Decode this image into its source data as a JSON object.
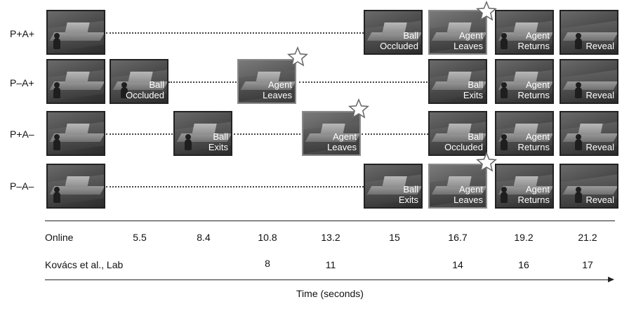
{
  "rows": [
    {
      "label": "P+A+",
      "captions": {
        "5": "Ball\nOccluded",
        "6": "Agent\nLeaves",
        "7": "Agent\nReturns",
        "8": "Reveal"
      }
    },
    {
      "label": "P–A+",
      "captions": {
        "2": "Ball\nOccluded",
        "4": "Agent\nLeaves",
        "6": "Ball\nExits",
        "7": "Agent\nReturns",
        "8": "Reveal"
      }
    },
    {
      "label": "P+A–",
      "captions": {
        "3": "Ball\nExits",
        "5": "Agent\nLeaves",
        "6": "Ball\nOccluded",
        "7": "Agent\nReturns",
        "8": "Reveal"
      }
    },
    {
      "label": "P–A–",
      "captions": {
        "5": "Ball\nExits",
        "6": "Agent\nLeaves",
        "7": "Agent\nReturns",
        "8": "Reveal"
      }
    }
  ],
  "timing": {
    "online_label": "Online",
    "online_values": [
      "5.5",
      "8.4",
      "10.8",
      "13.2",
      "15",
      "16.7",
      "19.2",
      "21.2"
    ],
    "lab_label": "Kovács et al., Lab",
    "lab_values": [
      "8",
      "11",
      "14",
      "16",
      "17"
    ],
    "axis_label": "Time (seconds)"
  },
  "icons": {
    "star": "star-icon",
    "agent": "agent-figure-icon"
  },
  "colors": {
    "frame_dark": "#2c2c2c",
    "frame_highlight": "#8a8a8a",
    "caption_text": "#ffffff"
  }
}
